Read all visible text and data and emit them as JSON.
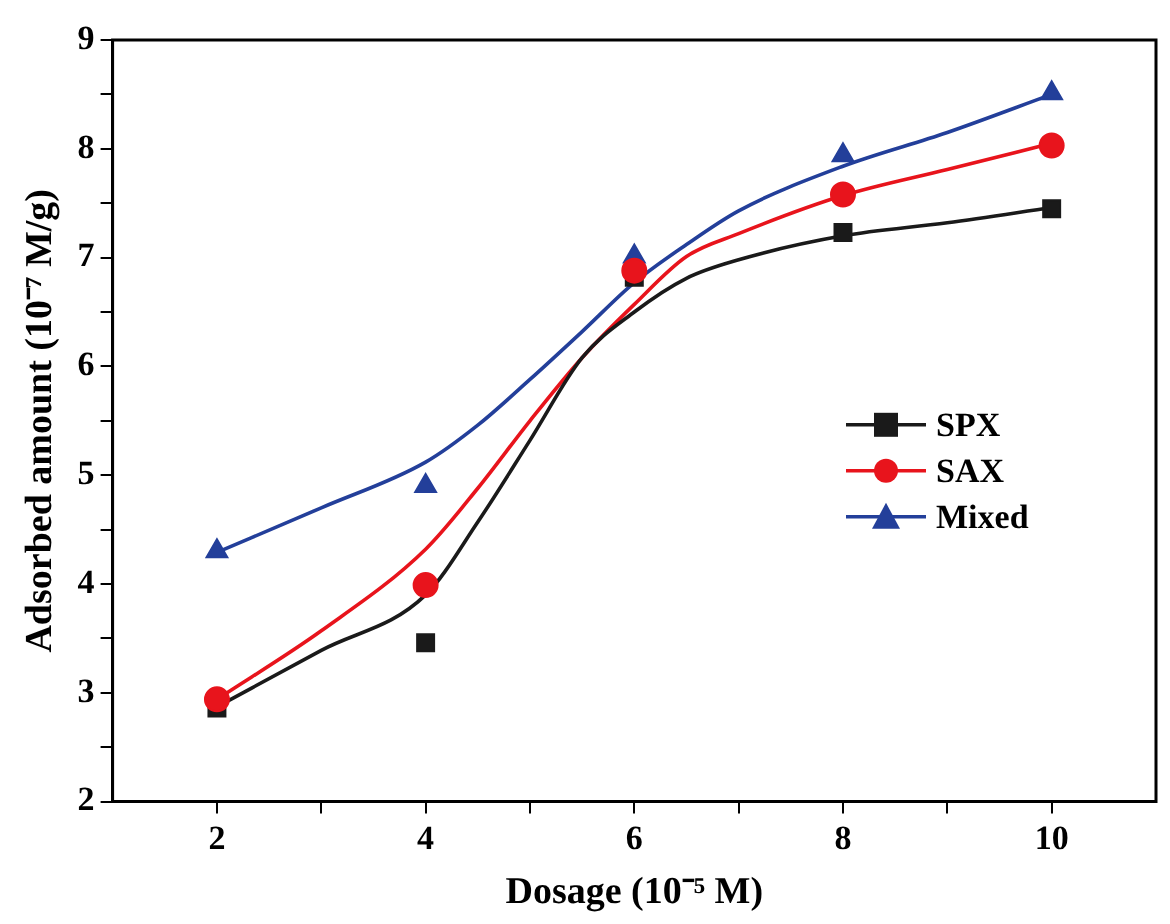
{
  "chart_data": {
    "type": "scatter",
    "xlabel": "Dosage (10⁻⁵ M)",
    "ylabel": "Adsorbed amount (10⁻⁷ M/g)",
    "x": [
      2,
      4,
      6,
      8,
      10
    ],
    "xlim": [
      1,
      11
    ],
    "xticks": [
      2,
      {
        "value": 3,
        "label": null
      },
      4,
      {
        "value": 5,
        "label": null
      },
      6,
      {
        "value": 7,
        "label": null
      },
      8,
      {
        "value": 9,
        "label": null
      },
      10
    ],
    "ylim": [
      2,
      9
    ],
    "yticks": [
      2,
      {
        "value": 2.5,
        "label": null
      },
      3,
      {
        "value": 3.5,
        "label": null
      },
      4,
      {
        "value": 4.5,
        "label": null
      },
      5,
      {
        "value": 5.5,
        "label": null
      },
      6,
      {
        "value": 6.5,
        "label": null
      },
      7,
      {
        "value": 7.5,
        "label": null
      },
      8,
      {
        "value": 8.5,
        "label": null
      },
      9
    ],
    "grid": false,
    "legend": "right",
    "series": [
      {
        "name": "SPX",
        "type": "scatter",
        "marker": "square",
        "color": "#1a1a1a",
        "values": [
          2.86,
          3.46,
          6.82,
          7.23,
          7.45
        ]
      },
      {
        "name": "SAX",
        "type": "scatter",
        "marker": "circle",
        "color": "#e8141c",
        "values": [
          2.94,
          3.99,
          6.88,
          7.58,
          8.03
        ]
      },
      {
        "name": "Mixed",
        "type": "scatter",
        "marker": "triangle",
        "color": "#233f9a",
        "values": [
          4.3,
          4.9,
          7.01,
          7.94,
          8.51
        ]
      },
      {
        "type": "line",
        "marker": "none",
        "color": "#1a1a1a",
        "x": [
          2,
          3,
          4,
          4.5,
          5,
          5.5,
          6,
          6.5,
          7,
          8,
          9,
          10
        ],
        "values": [
          2.87,
          3.39,
          3.9,
          4.57,
          5.32,
          6.08,
          6.5,
          6.81,
          6.98,
          7.2,
          7.32,
          7.46
        ]
      },
      {
        "type": "line",
        "marker": "none",
        "color": "#e8141c",
        "x": [
          2,
          3,
          4,
          4.5,
          5,
          5.5,
          6,
          6.5,
          7,
          8,
          9,
          10
        ],
        "values": [
          2.94,
          3.57,
          4.32,
          4.88,
          5.5,
          6.08,
          6.57,
          7.01,
          7.22,
          7.57,
          7.81,
          8.05
        ]
      },
      {
        "type": "line",
        "marker": "none",
        "color": "#233f9a",
        "x": [
          2,
          3,
          4,
          4.5,
          5,
          5.5,
          6,
          6.5,
          7,
          8,
          9,
          10
        ],
        "values": [
          4.29,
          4.7,
          5.12,
          5.46,
          5.88,
          6.32,
          6.77,
          7.12,
          7.43,
          7.84,
          8.15,
          8.5
        ]
      }
    ]
  }
}
